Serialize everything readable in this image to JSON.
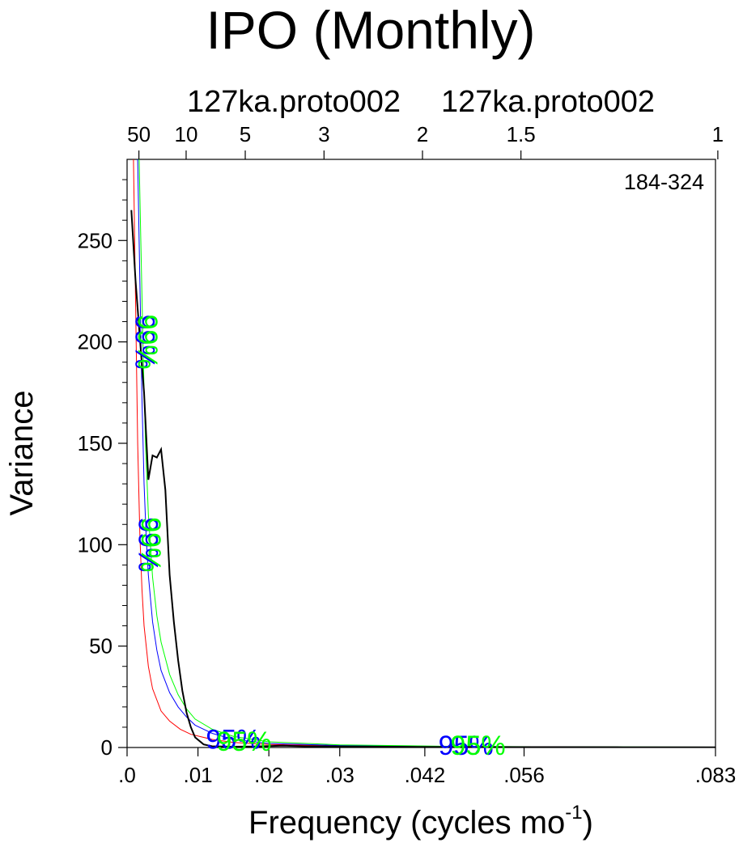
{
  "chart_data": {
    "type": "line",
    "title": "IPO (Monthly)",
    "top_labels": [
      "127ka.proto002",
      "127ka.proto002"
    ],
    "period_label": "184-324",
    "xlabel": "Frequency (cycles mo",
    "xlabel_sup": "-1",
    "xlabel_close": ")",
    "ylabel": "Variance",
    "xlim": [
      0,
      0.083
    ],
    "ylim": [
      0,
      290
    ],
    "x_ticks": [
      {
        "value": 0.0,
        "label": ".0"
      },
      {
        "value": 0.01,
        "label": ".01"
      },
      {
        "value": 0.02,
        "label": ".02"
      },
      {
        "value": 0.03,
        "label": ".03"
      },
      {
        "value": 0.042,
        "label": ".042"
      },
      {
        "value": 0.056,
        "label": ".056"
      },
      {
        "value": 0.083,
        "label": ".083"
      }
    ],
    "y_ticks": [
      {
        "value": 0,
        "label": "0"
      },
      {
        "value": 50,
        "label": "50"
      },
      {
        "value": 100,
        "label": "100"
      },
      {
        "value": 150,
        "label": "150"
      },
      {
        "value": 200,
        "label": "200"
      },
      {
        "value": 250,
        "label": "250"
      }
    ],
    "period_ticks": [
      {
        "value": 0.00167,
        "label": "50"
      },
      {
        "value": 0.00833,
        "label": "10"
      },
      {
        "value": 0.01667,
        "label": "5"
      },
      {
        "value": 0.02778,
        "label": "3"
      },
      {
        "value": 0.04167,
        "label": "2"
      },
      {
        "value": 0.05556,
        "label": "1.5"
      },
      {
        "value": 0.08333,
        "label": "1"
      }
    ],
    "series": [
      {
        "color": "#000000",
        "width": 2,
        "x": [
          0.0006,
          0.0012,
          0.0018,
          0.0024,
          0.003,
          0.0036,
          0.0042,
          0.0048,
          0.0054,
          0.006,
          0.0066,
          0.0072,
          0.0078,
          0.0084,
          0.009,
          0.0096,
          0.0108,
          0.012,
          0.015,
          0.018,
          0.02,
          0.022,
          0.025,
          0.03,
          0.035,
          0.04,
          0.05,
          0.06,
          0.07,
          0.083
        ],
        "values": [
          265,
          230,
          202,
          175,
          132,
          144,
          143,
          147,
          127,
          85,
          62,
          43,
          28,
          17,
          10,
          5,
          1.5,
          0.6,
          0.4,
          0.5,
          0.7,
          0.9,
          0.6,
          0.5,
          0.4,
          0.3,
          0.2,
          0.2,
          0.1,
          0.1
        ]
      },
      {
        "color": "#ff0000",
        "width": 1,
        "x": [
          0.0009,
          0.0012,
          0.0015,
          0.0018,
          0.0021,
          0.0024,
          0.003,
          0.0036,
          0.0048,
          0.006,
          0.0075,
          0.009,
          0.012,
          0.015,
          0.02,
          0.03,
          0.04,
          0.06,
          0.083
        ],
        "values": [
          290,
          220,
          150,
          105,
          78,
          60,
          40,
          29,
          18,
          13,
          9,
          6.5,
          4,
          2.5,
          1.5,
          0.8,
          0.5,
          0.3,
          0.2
        ]
      },
      {
        "color": "#0000ff",
        "width": 1,
        "x": [
          0.0015,
          0.0018,
          0.0021,
          0.0024,
          0.0027,
          0.003,
          0.0036,
          0.0042,
          0.0048,
          0.006,
          0.0072,
          0.0084,
          0.0096,
          0.012,
          0.015,
          0.02,
          0.03,
          0.045,
          0.06,
          0.083
        ],
        "values": [
          290,
          230,
          172,
          130,
          104,
          85,
          62,
          48,
          38,
          27,
          20,
          15,
          11,
          7,
          4,
          2,
          1,
          0.5,
          0.3,
          0.2
        ]
      },
      {
        "color": "#00ff00",
        "width": 1,
        "x": [
          0.0017,
          0.002,
          0.0023,
          0.0026,
          0.003,
          0.0036,
          0.0042,
          0.0048,
          0.006,
          0.0072,
          0.0084,
          0.0096,
          0.012,
          0.015,
          0.02,
          0.03,
          0.045,
          0.06,
          0.083
        ],
        "values": [
          290,
          240,
          190,
          150,
          115,
          84,
          65,
          52,
          36,
          26,
          19,
          14,
          9,
          5.5,
          2.8,
          1.3,
          0.6,
          0.35,
          0.2
        ]
      }
    ],
    "confidence_labels": [
      {
        "text": "99%",
        "color": "#0000ff",
        "x": 0.0022,
        "y": 200,
        "rotate": 90
      },
      {
        "text": "99%",
        "color": "#00ff00",
        "x": 0.0026,
        "y": 200,
        "rotate": 90
      },
      {
        "text": "99%",
        "color": "#0000ff",
        "x": 0.0027,
        "y": 100,
        "rotate": 90
      },
      {
        "text": "99%",
        "color": "#00ff00",
        "x": 0.0031,
        "y": 100,
        "rotate": 90
      },
      {
        "text": "95%",
        "color": "#0000ff",
        "x": 0.015,
        "y": 3,
        "rotate": 0
      },
      {
        "text": "95%",
        "color": "#00ff00",
        "x": 0.0165,
        "y": 2,
        "rotate": 0
      },
      {
        "text": "95%",
        "color": "#0000ff",
        "x": 0.0478,
        "y": 0,
        "rotate": 0
      },
      {
        "text": "95%",
        "color": "#00ff00",
        "x": 0.0495,
        "y": 0,
        "rotate": 0
      }
    ]
  }
}
